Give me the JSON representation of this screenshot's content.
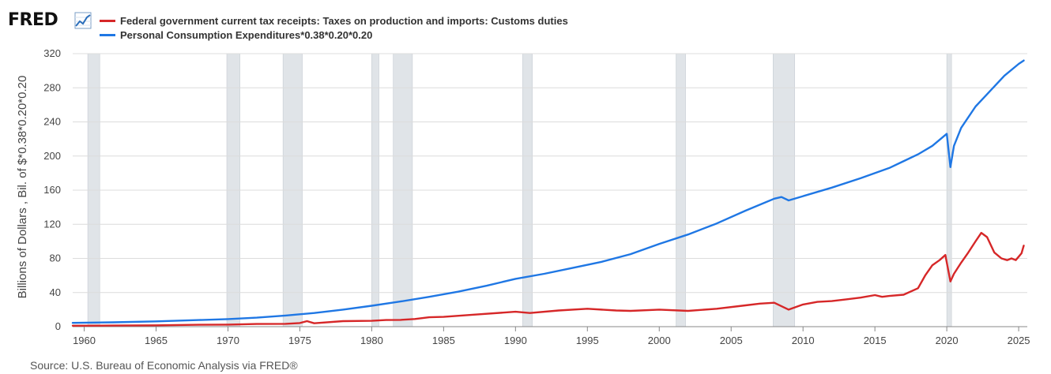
{
  "app": {
    "logo_text": "FRED",
    "logo_icon": "trend-chart-icon"
  },
  "source": "Source: U.S. Bureau of Economic Analysis via FRED®",
  "colors": {
    "series1": "#d62728",
    "series2": "#1f77e4",
    "recession": "#e0e4e8",
    "grid": "#dcdcdc"
  },
  "chart_data": {
    "type": "line",
    "title": "",
    "xlabel": "",
    "ylabel": "Billions of Dollars , Bil. of $*0.38*0.20*0.20",
    "xlim": [
      1959.2,
      2025.6
    ],
    "ylim": [
      0,
      320
    ],
    "yticks": [
      0,
      40,
      80,
      120,
      160,
      200,
      240,
      280,
      320
    ],
    "xticks": [
      1960,
      1965,
      1970,
      1975,
      1980,
      1985,
      1990,
      1995,
      2000,
      2005,
      2010,
      2015,
      2020,
      2025
    ],
    "recessions": [
      [
        1960.25,
        1961.08
      ],
      [
        1969.92,
        1970.83
      ],
      [
        1973.83,
        1975.17
      ],
      [
        1980.0,
        1980.5
      ],
      [
        1981.5,
        1982.83
      ],
      [
        1990.5,
        1991.17
      ],
      [
        2001.17,
        2001.83
      ],
      [
        2007.92,
        2009.42
      ],
      [
        2020.0,
        2020.33
      ]
    ],
    "series": [
      {
        "name": "Federal government current tax receipts: Taxes on production and imports: Customs duties",
        "color": "#d62728",
        "x": [
          1959.2,
          1962,
          1965,
          1968,
          1970,
          1972,
          1974,
          1975,
          1975.5,
          1976,
          1978,
          1980,
          1981,
          1982,
          1983,
          1984,
          1985,
          1987,
          1990,
          1991,
          1993,
          1995,
          1997,
          1998,
          2000,
          2002,
          2004,
          2006,
          2007,
          2008,
          2009,
          2009.5,
          2010,
          2011,
          2012,
          2013,
          2014,
          2015,
          2015.5,
          2016,
          2017,
          2018,
          2018.5,
          2019,
          2019.5,
          2019.9,
          2020.25,
          2020.5,
          2021,
          2021.5,
          2022,
          2022.4,
          2022.8,
          2023.3,
          2023.8,
          2024.2,
          2024.5,
          2024.8,
          2025.0,
          2025.2,
          2025.35
        ],
        "values": [
          1.1,
          1.3,
          1.6,
          2.2,
          2.4,
          3.1,
          3.3,
          4.3,
          6.5,
          4.0,
          6.5,
          6.8,
          7.8,
          8.0,
          9.0,
          11.0,
          11.5,
          14.0,
          17.5,
          16.0,
          19.0,
          21.0,
          19.0,
          18.5,
          20.0,
          18.5,
          21.0,
          25.0,
          27.0,
          28.0,
          20.0,
          23.0,
          26.0,
          29.0,
          30.0,
          32.0,
          34.0,
          37.0,
          35.0,
          36.0,
          37.5,
          45.0,
          60.0,
          72.0,
          78.0,
          84.0,
          53.0,
          62.0,
          75.0,
          87.0,
          100.0,
          110.0,
          105.0,
          87.0,
          80.0,
          78.0,
          80.0,
          78.0,
          82.0,
          86.0,
          95.0
        ]
      },
      {
        "name": "Personal Consumption Expenditures*0.38*0.20*0.20",
        "color": "#1f77e4",
        "x": [
          1959.2,
          1962,
          1965,
          1968,
          1970,
          1972,
          1974,
          1976,
          1978,
          1980,
          1982,
          1984,
          1986,
          1988,
          1990,
          1992,
          1994,
          1996,
          1998,
          2000,
          2002,
          2004,
          2006,
          2008,
          2008.5,
          2009,
          2010,
          2012,
          2014,
          2016,
          2018,
          2019,
          2020.0,
          2020.25,
          2020.5,
          2021,
          2022,
          2023,
          2024,
          2025.0,
          2025.35
        ],
        "values": [
          4.4,
          5.1,
          6.2,
          7.8,
          8.9,
          10.5,
          13.0,
          16.0,
          20.0,
          24.5,
          29.5,
          35.0,
          41.0,
          48.0,
          56.0,
          62.0,
          69.0,
          76.0,
          85.0,
          97.0,
          108.0,
          121.0,
          136.0,
          150.0,
          152.0,
          148.0,
          153.0,
          163.0,
          174.0,
          186.0,
          202.0,
          212.0,
          226.0,
          187.0,
          212.0,
          233.0,
          258.0,
          276.0,
          294.0,
          308.0,
          312.0
        ]
      }
    ]
  }
}
